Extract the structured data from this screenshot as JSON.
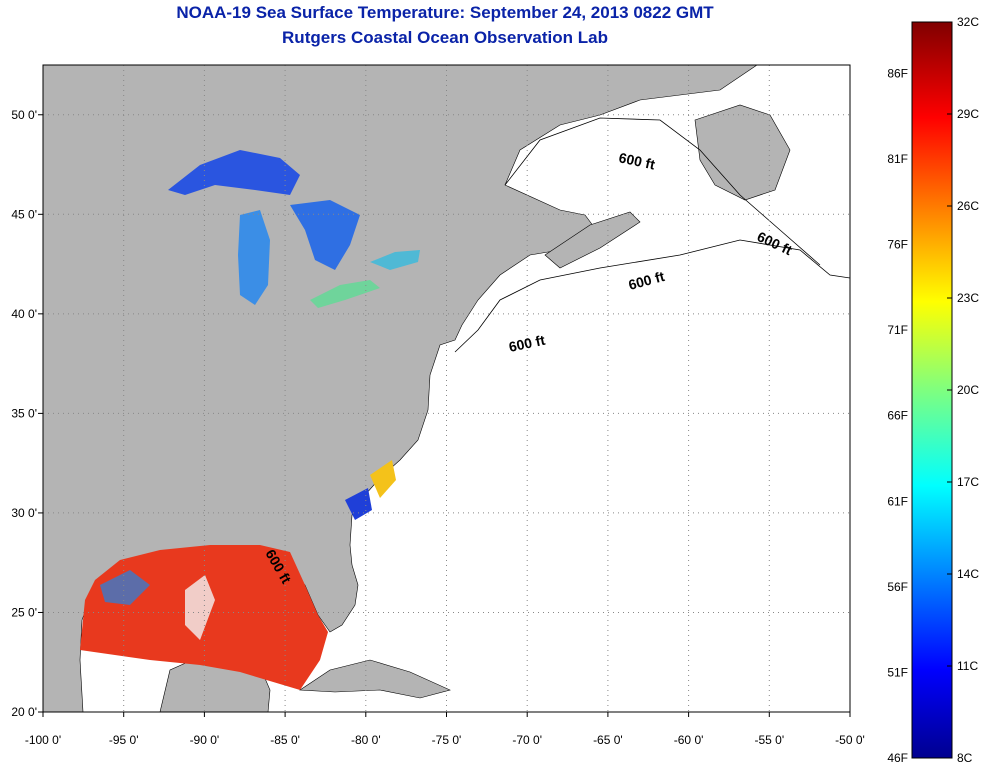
{
  "title_line1": "NOAA-19 Sea Surface Temperature:  September 24, 2013 0822 GMT",
  "title_line2": "Rutgers Coastal Ocean Observation Lab",
  "map": {
    "lon_range": [
      -100,
      -50
    ],
    "lat_range": [
      20,
      52.5
    ],
    "grid": true,
    "lon_ticks": [
      "-100 0'",
      "-95 0'",
      "-90 0'",
      "-85 0'",
      "-80 0'",
      "-75 0'",
      "-70 0'",
      "-65 0'",
      "-60 0'",
      "-55 0'",
      "-50 0'"
    ],
    "lat_ticks": [
      "20 0'",
      "25 0'",
      "30 0'",
      "35 0'",
      "40 0'",
      "45 0'",
      "50 0'"
    ],
    "contour_label": "600 ft",
    "colors": {
      "land": "#b4b4b4",
      "ocean": "#ffffff",
      "grid": "#888888"
    }
  },
  "colorbar": {
    "range_c": [
      8,
      32
    ],
    "celsius_labels": [
      "32C",
      "29C",
      "26C",
      "23C",
      "20C",
      "17C",
      "14C",
      "11C",
      "8C"
    ],
    "fahrenheit_labels": [
      "86F",
      "81F",
      "76F",
      "71F",
      "66F",
      "61F",
      "56F",
      "51F",
      "46F"
    ]
  }
}
